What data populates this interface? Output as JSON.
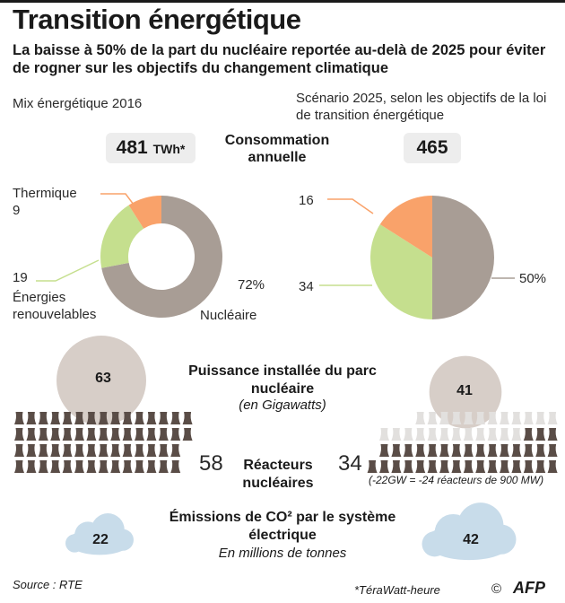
{
  "title": "Transition énergétique",
  "subtitle": "La baisse à 50% de la part du nucléaire reportée au-delà de 2025 pour éviter de rogner sur les objectifs du changement climatique",
  "left_header": "Mix énergétique 2016",
  "right_header": "Scénario 2025, selon les objectifs de la loi de transition énergétique",
  "consumption_label": "Consommation annuelle",
  "left_total": "481",
  "left_total_unit": "TWh*",
  "right_total": "465",
  "capacity_title": "Puissance installée du parc nucléaire",
  "capacity_unit": "(en Gigawatts)",
  "reactors_label": "Réacteurs nucléaires",
  "reactors_note": "(-22GW = -24 réacteurs de 900 MW)",
  "emissions_title": "Émissions de CO² par le système électrique",
  "emissions_unit": "En millions de tonnes",
  "source": "Source : RTE",
  "footnote": "*TéraWatt-heure",
  "logo_text": "AFP",
  "copyright_symbol": "©",
  "colors": {
    "nuclear": "#a89d95",
    "renewables": "#c5df8e",
    "thermal": "#f9a26a",
    "reactor_active": "#5a4d47",
    "reactor_closed": "#e2e0de",
    "circle_left": "#d7cec8",
    "circle_right": "#d7cec8",
    "cloud": "#c8dcea"
  },
  "chart_data": [
    {
      "type": "pie",
      "title": "Mix énergétique 2016",
      "categories": [
        "Nucléaire",
        "Énergies renouvelables",
        "Thermique"
      ],
      "values": [
        72,
        19,
        9
      ],
      "value_labels": [
        "72%",
        "19",
        "9"
      ],
      "total": 481
    },
    {
      "type": "pie",
      "title": "Scénario 2025, selon les objectifs de la loi de transition énergétique",
      "categories": [
        "Nucléaire",
        "Énergies renouvelables",
        "Thermique"
      ],
      "values": [
        50,
        34,
        16
      ],
      "value_labels": [
        "50%",
        "34",
        "16"
      ],
      "total": 465
    },
    {
      "type": "bar",
      "title": "Puissance installée du parc nucléaire",
      "categories": [
        "2016",
        "2025"
      ],
      "values": [
        63,
        41
      ]
    },
    {
      "type": "bar",
      "title": "Réacteurs nucléaires",
      "categories": [
        "2016",
        "2025"
      ],
      "values": [
        58,
        34
      ],
      "total_slots": 58
    },
    {
      "type": "bar",
      "title": "Émissions de CO² par le système électrique",
      "categories": [
        "2016",
        "2025"
      ],
      "values": [
        22,
        42
      ]
    }
  ]
}
